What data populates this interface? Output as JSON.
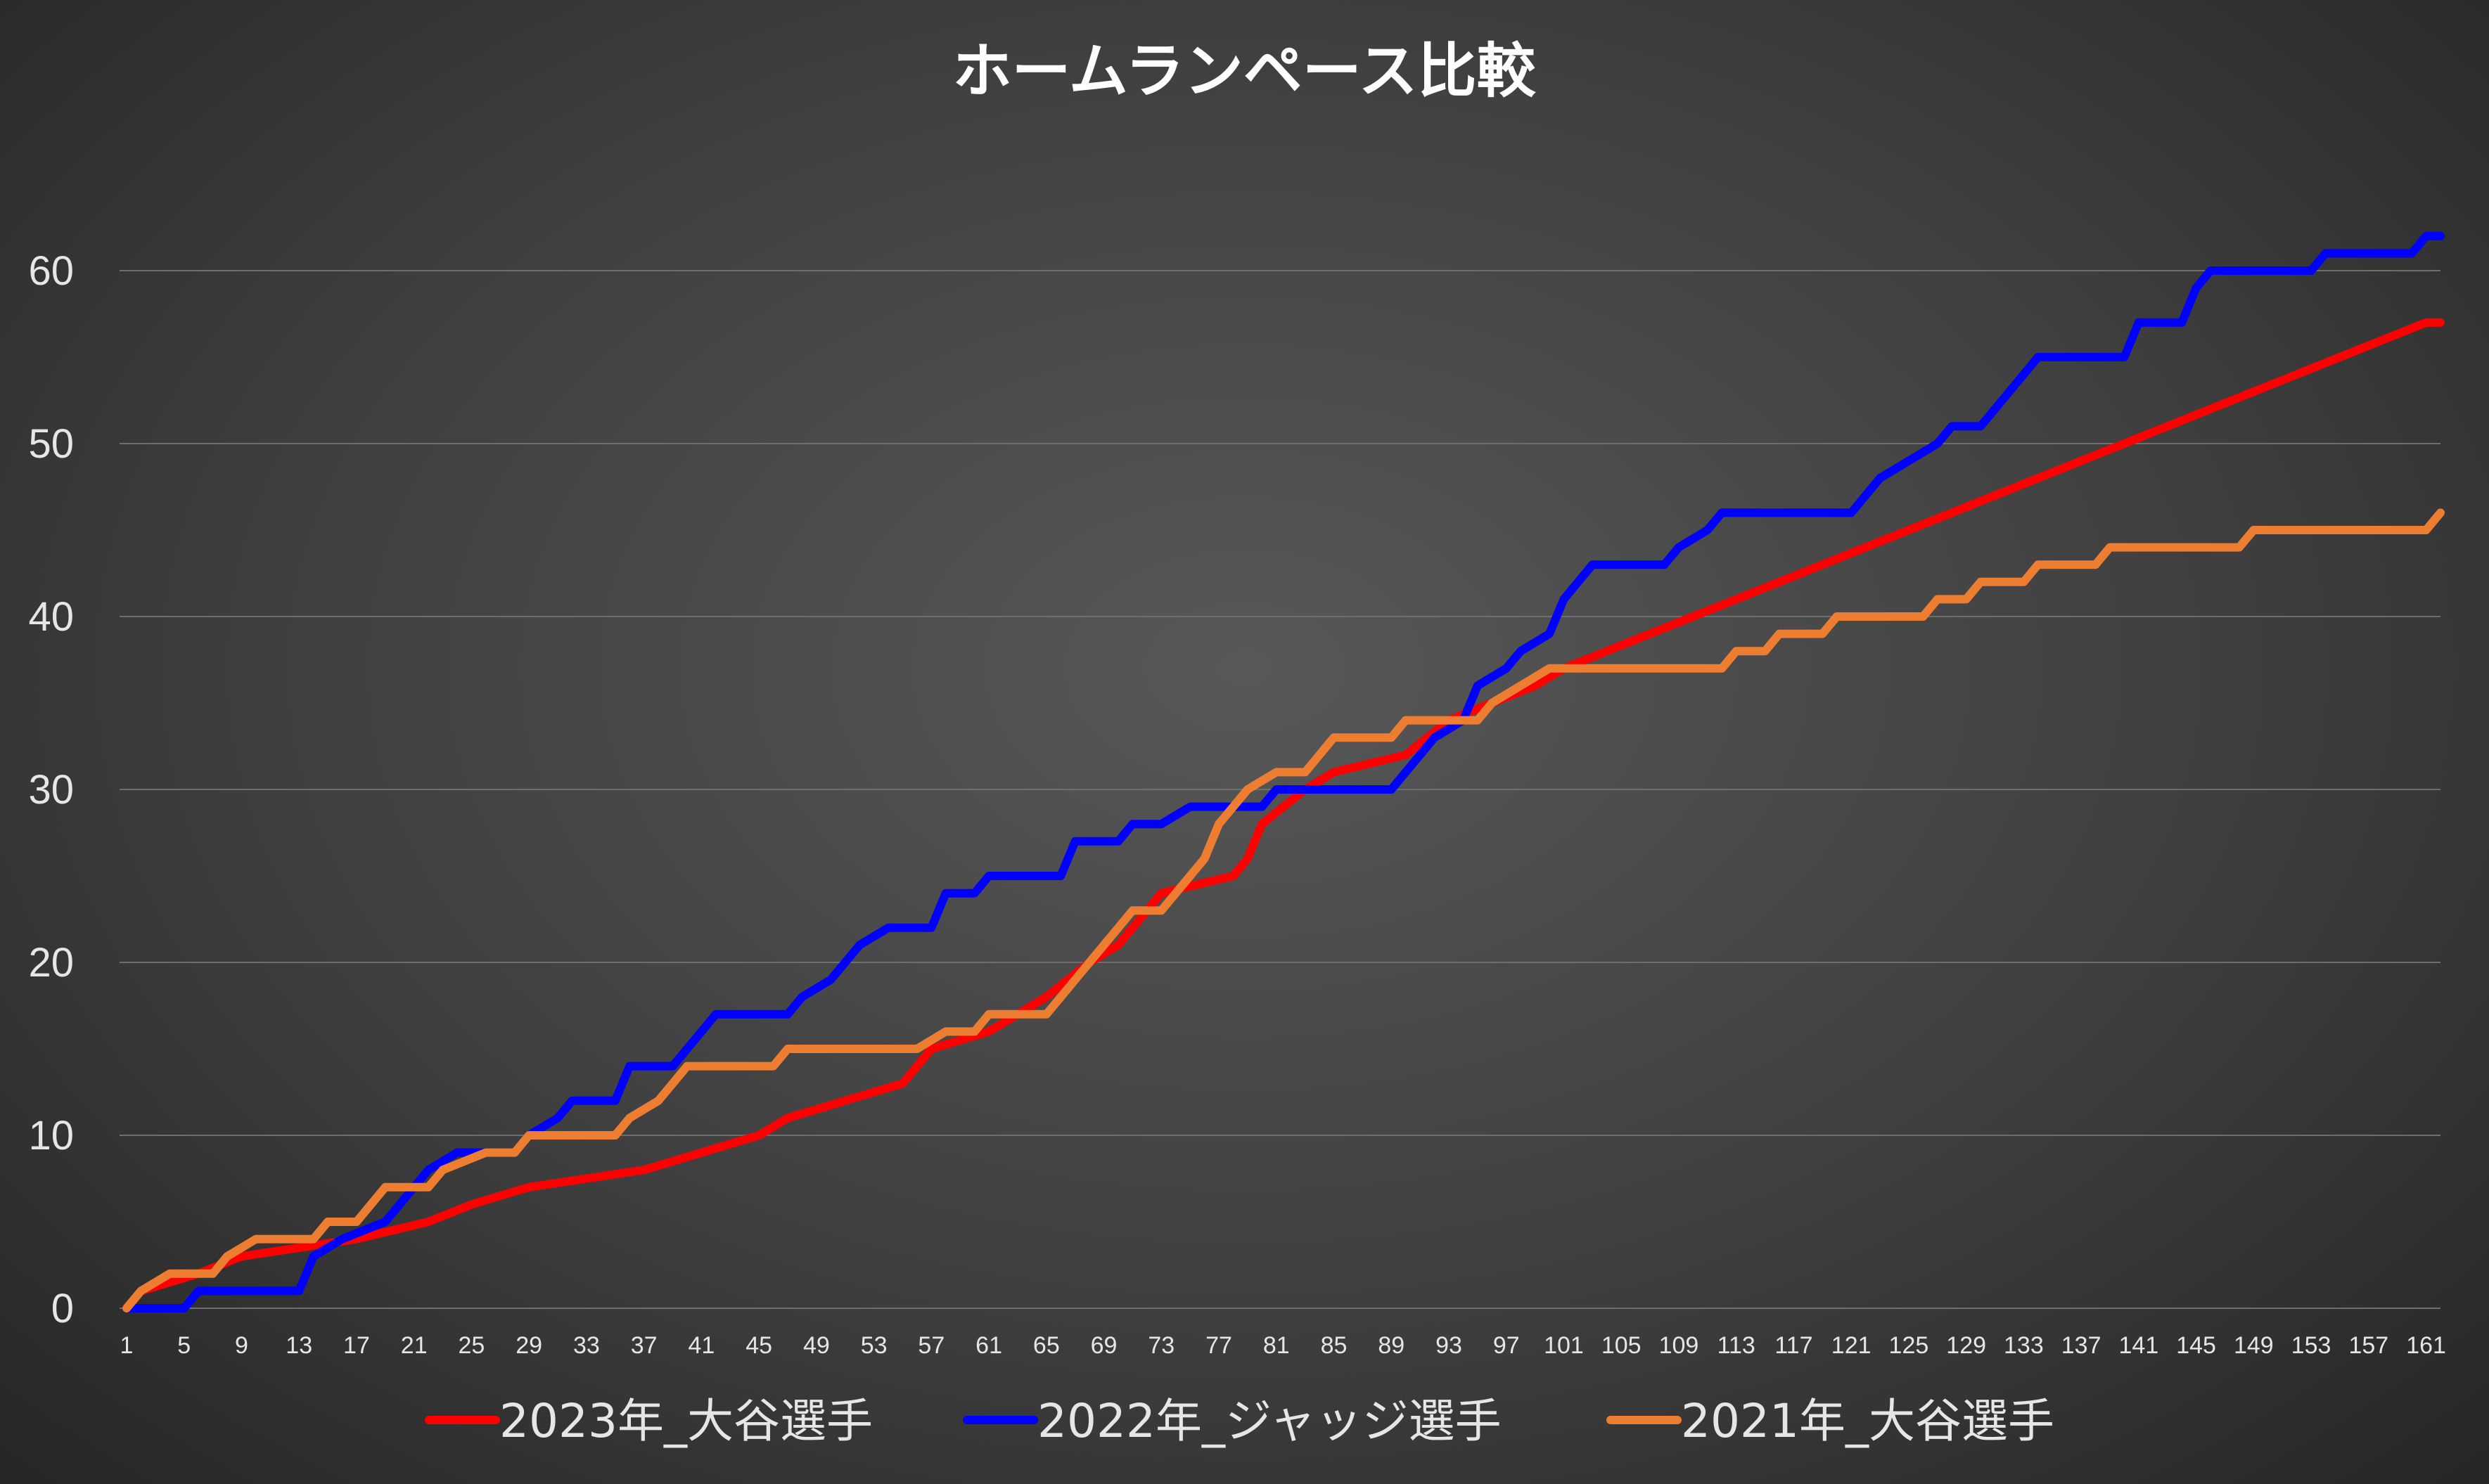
{
  "chart_data": {
    "type": "line",
    "title": "ホームランペース比較",
    "xlabel": "",
    "ylabel": "",
    "xlim": [
      1,
      162
    ],
    "ylim": [
      0,
      60
    ],
    "yticks": [
      0,
      10,
      20,
      30,
      40,
      50,
      60
    ],
    "xticks": [
      1,
      5,
      9,
      13,
      17,
      21,
      25,
      29,
      33,
      37,
      41,
      45,
      49,
      53,
      57,
      61,
      65,
      69,
      73,
      77,
      81,
      85,
      89,
      93,
      97,
      101,
      105,
      109,
      113,
      117,
      121,
      125,
      129,
      133,
      137,
      141,
      145,
      149,
      153,
      157,
      161
    ],
    "grid": true,
    "legend_position": "bottom",
    "series": [
      {
        "name": "2023年_大谷選手",
        "color": "#ff0000",
        "points": [
          [
            1,
            0
          ],
          [
            2,
            1
          ],
          [
            6,
            2
          ],
          [
            9,
            3
          ],
          [
            17,
            4
          ],
          [
            22,
            5
          ],
          [
            25,
            6
          ],
          [
            29,
            7
          ],
          [
            37,
            8
          ],
          [
            41,
            9
          ],
          [
            45,
            10
          ],
          [
            47,
            11
          ],
          [
            51,
            12
          ],
          [
            55,
            13
          ],
          [
            56,
            14
          ],
          [
            57,
            15
          ],
          [
            61,
            16
          ],
          [
            65,
            18
          ],
          [
            68,
            20
          ],
          [
            70,
            21
          ],
          [
            71,
            22
          ],
          [
            73,
            24
          ],
          [
            78,
            25
          ],
          [
            79,
            26
          ],
          [
            80,
            28
          ],
          [
            83,
            30
          ],
          [
            85,
            31
          ],
          [
            90,
            32
          ],
          [
            93,
            34
          ],
          [
            96,
            35
          ],
          [
            99,
            36
          ],
          [
            101,
            37
          ],
          [
            104,
            38
          ],
          [
            107,
            39
          ],
          [
            110,
            40
          ],
          [
            113,
            41
          ],
          [
            116,
            42
          ],
          [
            119,
            43
          ],
          [
            122,
            44
          ],
          [
            125,
            45
          ],
          [
            128,
            46
          ],
          [
            131,
            47
          ],
          [
            134,
            48
          ],
          [
            137,
            49
          ],
          [
            140,
            50
          ],
          [
            143,
            51
          ],
          [
            146,
            52
          ],
          [
            149,
            53
          ],
          [
            152,
            54
          ],
          [
            155,
            55
          ],
          [
            158,
            56
          ],
          [
            161,
            57
          ],
          [
            162,
            57
          ]
        ]
      },
      {
        "name": "2022年_ジャッジ選手",
        "color": "#0000ff",
        "points": [
          [
            1,
            0
          ],
          [
            5,
            0
          ],
          [
            6,
            1
          ],
          [
            13,
            1
          ],
          [
            14,
            3
          ],
          [
            16,
            4
          ],
          [
            19,
            5
          ],
          [
            20,
            6
          ],
          [
            22,
            8
          ],
          [
            24,
            9
          ],
          [
            28,
            9
          ],
          [
            29,
            10
          ],
          [
            31,
            11
          ],
          [
            32,
            12
          ],
          [
            35,
            12
          ],
          [
            36,
            14
          ],
          [
            39,
            14
          ],
          [
            40,
            15
          ],
          [
            41,
            16
          ],
          [
            42,
            17
          ],
          [
            47,
            17
          ],
          [
            48,
            18
          ],
          [
            50,
            19
          ],
          [
            52,
            21
          ],
          [
            54,
            22
          ],
          [
            57,
            22
          ],
          [
            58,
            24
          ],
          [
            60,
            24
          ],
          [
            61,
            25
          ],
          [
            66,
            25
          ],
          [
            67,
            27
          ],
          [
            70,
            27
          ],
          [
            71,
            28
          ],
          [
            73,
            28
          ],
          [
            75,
            29
          ],
          [
            80,
            29
          ],
          [
            81,
            30
          ],
          [
            89,
            30
          ],
          [
            90,
            31
          ],
          [
            92,
            33
          ],
          [
            94,
            34
          ],
          [
            95,
            36
          ],
          [
            97,
            37
          ],
          [
            98,
            38
          ],
          [
            100,
            39
          ],
          [
            101,
            41
          ],
          [
            102,
            42
          ],
          [
            103,
            43
          ],
          [
            108,
            43
          ],
          [
            109,
            44
          ],
          [
            111,
            45
          ],
          [
            112,
            46
          ],
          [
            121,
            46
          ],
          [
            122,
            47
          ],
          [
            123,
            48
          ],
          [
            125,
            49
          ],
          [
            127,
            50
          ],
          [
            128,
            51
          ],
          [
            130,
            51
          ],
          [
            131,
            52
          ],
          [
            132,
            53
          ],
          [
            133,
            54
          ],
          [
            134,
            55
          ],
          [
            140,
            55
          ],
          [
            141,
            57
          ],
          [
            144,
            57
          ],
          [
            145,
            59
          ],
          [
            146,
            60
          ],
          [
            153,
            60
          ],
          [
            154,
            61
          ],
          [
            160,
            61
          ],
          [
            161,
            62
          ],
          [
            162,
            62
          ]
        ]
      },
      {
        "name": "2021年_大谷選手",
        "color": "#ed7d31",
        "points": [
          [
            1,
            0
          ],
          [
            2,
            1
          ],
          [
            4,
            2
          ],
          [
            7,
            2
          ],
          [
            8,
            3
          ],
          [
            10,
            4
          ],
          [
            14,
            4
          ],
          [
            15,
            5
          ],
          [
            17,
            5
          ],
          [
            18,
            6
          ],
          [
            19,
            7
          ],
          [
            22,
            7
          ],
          [
            23,
            8
          ],
          [
            26,
            9
          ],
          [
            28,
            9
          ],
          [
            29,
            10
          ],
          [
            35,
            10
          ],
          [
            36,
            11
          ],
          [
            38,
            12
          ],
          [
            39,
            13
          ],
          [
            40,
            14
          ],
          [
            46,
            14
          ],
          [
            47,
            15
          ],
          [
            56,
            15
          ],
          [
            58,
            16
          ],
          [
            60,
            16
          ],
          [
            61,
            17
          ],
          [
            65,
            17
          ],
          [
            66,
            18
          ],
          [
            67,
            19
          ],
          [
            68,
            20
          ],
          [
            69,
            21
          ],
          [
            70,
            22
          ],
          [
            71,
            23
          ],
          [
            73,
            23
          ],
          [
            74,
            24
          ],
          [
            75,
            25
          ],
          [
            76,
            26
          ],
          [
            77,
            28
          ],
          [
            78,
            29
          ],
          [
            79,
            30
          ],
          [
            81,
            31
          ],
          [
            83,
            31
          ],
          [
            84,
            32
          ],
          [
            85,
            33
          ],
          [
            89,
            33
          ],
          [
            90,
            34
          ],
          [
            95,
            34
          ],
          [
            96,
            35
          ],
          [
            98,
            36
          ],
          [
            100,
            37
          ],
          [
            112,
            37
          ],
          [
            113,
            38
          ],
          [
            115,
            38
          ],
          [
            116,
            39
          ],
          [
            119,
            39
          ],
          [
            120,
            40
          ],
          [
            126,
            40
          ],
          [
            127,
            41
          ],
          [
            129,
            41
          ],
          [
            130,
            42
          ],
          [
            133,
            42
          ],
          [
            134,
            43
          ],
          [
            138,
            43
          ],
          [
            139,
            44
          ],
          [
            148,
            44
          ],
          [
            149,
            45
          ],
          [
            161,
            45
          ],
          [
            162,
            46
          ]
        ]
      }
    ]
  }
}
